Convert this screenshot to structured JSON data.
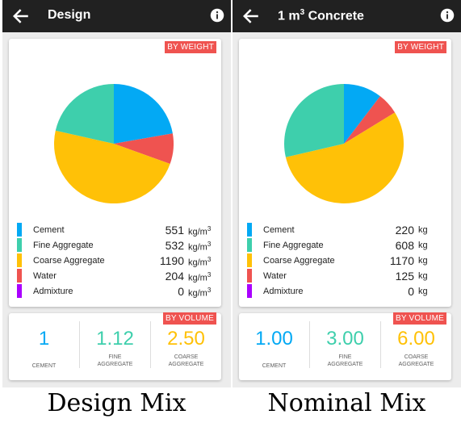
{
  "colors": {
    "cement": "#03a9f4",
    "fine_aggregate": "#3ecfac",
    "coarse_aggregate": "#ffc107",
    "water": "#ef5350",
    "admixture": "#aa00ff"
  },
  "icons": {
    "back": "arrow-left-icon",
    "info": "info-circle-icon"
  },
  "panels": [
    {
      "title": "Design",
      "weight_badge": "BY WEIGHT",
      "volume_badge": "BY VOLUME",
      "chart_data": {
        "type": "pie",
        "slices": [
          {
            "name": "Cement",
            "value": 551
          },
          {
            "name": "Water",
            "value": 204
          },
          {
            "name": "Coarse Aggregate",
            "value": 1190
          },
          {
            "name": "Fine Aggregate",
            "value": 532
          }
        ]
      },
      "legend": [
        {
          "name": "Cement",
          "value": "551",
          "unit": "kg/m",
          "sup": "3"
        },
        {
          "name": "Fine Aggregate",
          "value": "532",
          "unit": "kg/m",
          "sup": "3"
        },
        {
          "name": "Coarse Aggregate",
          "value": "1190",
          "unit": "kg/m",
          "sup": "3"
        },
        {
          "name": "Water",
          "value": "204",
          "unit": "kg/m",
          "sup": "3"
        },
        {
          "name": "Admixture",
          "value": "0",
          "unit": "kg/m",
          "sup": "3"
        }
      ],
      "volume": [
        {
          "value": "1",
          "label_lines": [
            "CEMENT"
          ]
        },
        {
          "value": "1.12",
          "label_lines": [
            "FINE",
            "AGGREGATE"
          ]
        },
        {
          "value": "2.50",
          "label_lines": [
            "COARSE",
            "AGGREGATE"
          ]
        }
      ],
      "caption": "Design  Mix"
    },
    {
      "title": "1 m",
      "title_sup": "3",
      "title_rest": " Concrete",
      "weight_badge": "BY WEIGHT",
      "volume_badge": "BY VOLUME",
      "chart_data": {
        "type": "pie",
        "slices": [
          {
            "name": "Cement",
            "value": 220
          },
          {
            "name": "Water",
            "value": 125
          },
          {
            "name": "Coarse Aggregate",
            "value": 1170
          },
          {
            "name": "Fine Aggregate",
            "value": 608
          }
        ]
      },
      "legend": [
        {
          "name": "Cement",
          "value": "220",
          "unit": "kg",
          "sup": ""
        },
        {
          "name": "Fine Aggregate",
          "value": "608",
          "unit": "kg",
          "sup": ""
        },
        {
          "name": "Coarse Aggregate",
          "value": "1170",
          "unit": "kg",
          "sup": ""
        },
        {
          "name": "Water",
          "value": "125",
          "unit": "kg",
          "sup": ""
        },
        {
          "name": "Admixture",
          "value": "0",
          "unit": "kg",
          "sup": ""
        }
      ],
      "volume": [
        {
          "value": "1.00",
          "label_lines": [
            "CEMENT"
          ]
        },
        {
          "value": "3.00",
          "label_lines": [
            "FINE",
            "AGGREGATE"
          ]
        },
        {
          "value": "6.00",
          "label_lines": [
            "COARSE",
            "AGGREGATE"
          ]
        }
      ],
      "caption": "Nominal  Mix"
    }
  ]
}
